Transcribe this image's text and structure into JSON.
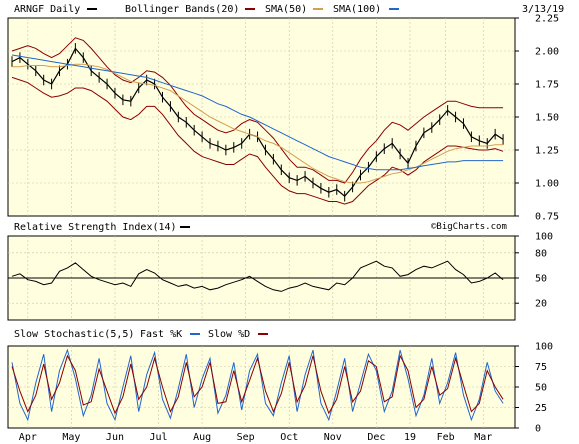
{
  "chart_data": [
    {
      "type": "line",
      "name": "price-panel",
      "title": "ARNGF Daily",
      "date": "3/13/19",
      "legend": [
        {
          "label": "ARNGF Daily",
          "color": "#000000"
        },
        {
          "label": "Bollinger Bands(20)",
          "color": "#8b0000"
        },
        {
          "label": "SMA(50)",
          "color": "#d2a050"
        },
        {
          "label": "SMA(100)",
          "color": "#2266cc"
        }
      ],
      "ylim": [
        0.75,
        2.25
      ],
      "yticks": [
        "0.75",
        "1.00",
        "1.25",
        "1.50",
        "1.75",
        "2.00",
        "2.25"
      ],
      "watermark": "©BigCharts.com",
      "x": [
        0,
        4,
        8,
        12,
        16,
        20,
        24,
        28,
        32,
        36,
        40,
        44,
        48,
        52,
        56,
        60,
        64,
        68,
        72,
        76,
        80,
        84,
        88,
        92,
        96,
        100,
        104,
        108,
        112,
        116,
        120,
        124,
        128,
        132,
        136,
        140,
        144,
        148,
        152,
        156,
        160,
        164,
        168,
        172,
        176,
        180,
        184,
        188,
        192,
        196,
        200,
        204,
        208,
        212,
        216,
        220,
        224,
        228,
        232,
        236,
        240,
        244,
        248
      ],
      "series": [
        {
          "name": "ARNGF Daily",
          "color": "#000000",
          "values": [
            1.92,
            1.95,
            1.9,
            1.85,
            1.78,
            1.75,
            1.85,
            1.9,
            2.02,
            1.95,
            1.85,
            1.8,
            1.75,
            1.68,
            1.63,
            1.62,
            1.72,
            1.78,
            1.75,
            1.65,
            1.58,
            1.5,
            1.46,
            1.4,
            1.35,
            1.3,
            1.28,
            1.25,
            1.27,
            1.3,
            1.37,
            1.35,
            1.25,
            1.18,
            1.1,
            1.04,
            1.02,
            1.05,
            1.0,
            0.96,
            0.93,
            0.95,
            0.9,
            0.97,
            1.06,
            1.12,
            1.2,
            1.26,
            1.3,
            1.22,
            1.15,
            1.28,
            1.38,
            1.42,
            1.48,
            1.55,
            1.5,
            1.45,
            1.35,
            1.32,
            1.3,
            1.37,
            1.33
          ]
        },
        {
          "name": "Bollinger Bands(20)",
          "color": "#8b0000",
          "values": [
            2.0,
            2.02,
            2.04,
            2.02,
            1.98,
            1.95,
            1.98,
            2.04,
            2.1,
            2.08,
            2.02,
            1.95,
            1.88,
            1.82,
            1.78,
            1.76,
            1.8,
            1.85,
            1.84,
            1.8,
            1.74,
            1.66,
            1.58,
            1.52,
            1.48,
            1.44,
            1.4,
            1.38,
            1.4,
            1.45,
            1.48,
            1.46,
            1.4,
            1.34,
            1.26,
            1.18,
            1.12,
            1.12,
            1.1,
            1.06,
            1.02,
            1.02,
            1.0,
            1.08,
            1.18,
            1.26,
            1.32,
            1.4,
            1.46,
            1.44,
            1.4,
            1.45,
            1.5,
            1.54,
            1.58,
            1.62,
            1.62,
            1.6,
            1.58,
            1.57,
            1.57,
            1.57,
            1.57
          ]
        },
        {
          "name": "Bollinger Bands(20) lower",
          "color": "#8b0000",
          "values": [
            1.8,
            1.78,
            1.76,
            1.72,
            1.68,
            1.65,
            1.66,
            1.68,
            1.72,
            1.72,
            1.7,
            1.66,
            1.62,
            1.56,
            1.5,
            1.48,
            1.52,
            1.58,
            1.58,
            1.52,
            1.44,
            1.36,
            1.3,
            1.24,
            1.2,
            1.18,
            1.16,
            1.14,
            1.14,
            1.18,
            1.22,
            1.2,
            1.12,
            1.05,
            0.98,
            0.94,
            0.92,
            0.92,
            0.9,
            0.88,
            0.86,
            0.86,
            0.84,
            0.86,
            0.92,
            0.98,
            1.02,
            1.06,
            1.12,
            1.1,
            1.06,
            1.1,
            1.16,
            1.2,
            1.24,
            1.28,
            1.28,
            1.27,
            1.26,
            1.25,
            1.25,
            1.26,
            1.24
          ]
        },
        {
          "name": "SMA(50)",
          "color": "#d2a050",
          "values": [
            1.88,
            1.88,
            1.89,
            1.89,
            1.89,
            1.88,
            1.88,
            1.89,
            1.9,
            1.9,
            1.89,
            1.88,
            1.86,
            1.83,
            1.8,
            1.77,
            1.76,
            1.75,
            1.74,
            1.72,
            1.7,
            1.66,
            1.62,
            1.58,
            1.54,
            1.5,
            1.47,
            1.44,
            1.41,
            1.39,
            1.37,
            1.35,
            1.32,
            1.3,
            1.27,
            1.23,
            1.19,
            1.15,
            1.11,
            1.08,
            1.05,
            1.03,
            1.01,
            1.0,
            1.0,
            1.01,
            1.03,
            1.05,
            1.07,
            1.08,
            1.1,
            1.12,
            1.15,
            1.18,
            1.21,
            1.24,
            1.26,
            1.27,
            1.28,
            1.28,
            1.28,
            1.29,
            1.29
          ]
        },
        {
          "name": "SMA(100)",
          "color": "#2266cc",
          "values": [
            1.97,
            1.96,
            1.95,
            1.94,
            1.93,
            1.92,
            1.91,
            1.9,
            1.89,
            1.88,
            1.87,
            1.86,
            1.85,
            1.84,
            1.83,
            1.82,
            1.81,
            1.8,
            1.78,
            1.76,
            1.74,
            1.72,
            1.7,
            1.68,
            1.66,
            1.63,
            1.6,
            1.58,
            1.55,
            1.52,
            1.5,
            1.47,
            1.44,
            1.41,
            1.38,
            1.35,
            1.32,
            1.29,
            1.26,
            1.23,
            1.2,
            1.18,
            1.16,
            1.14,
            1.12,
            1.11,
            1.1,
            1.1,
            1.1,
            1.1,
            1.11,
            1.12,
            1.13,
            1.14,
            1.15,
            1.16,
            1.16,
            1.17,
            1.17,
            1.17,
            1.17,
            1.17,
            1.17
          ]
        }
      ]
    },
    {
      "type": "line",
      "name": "rsi-panel",
      "title": "Relative Strength Index(14)",
      "legend": [
        {
          "label": "Relative Strength Index(14)",
          "color": "#000000"
        }
      ],
      "ylim": [
        0,
        100
      ],
      "yticks": [
        "20",
        "50",
        "80",
        "100"
      ],
      "reference_line": 50,
      "x": [
        0,
        4,
        8,
        12,
        16,
        20,
        24,
        28,
        32,
        36,
        40,
        44,
        48,
        52,
        56,
        60,
        64,
        68,
        72,
        76,
        80,
        84,
        88,
        92,
        96,
        100,
        104,
        108,
        112,
        116,
        120,
        124,
        128,
        132,
        136,
        140,
        144,
        148,
        152,
        156,
        160,
        164,
        168,
        172,
        176,
        180,
        184,
        188,
        192,
        196,
        200,
        204,
        208,
        212,
        216,
        220,
        224,
        228,
        232,
        236,
        240,
        244,
        248
      ],
      "series": [
        {
          "name": "Relative Strength Index(14)",
          "color": "#000000",
          "values": [
            52,
            55,
            48,
            46,
            42,
            44,
            58,
            62,
            68,
            60,
            52,
            48,
            45,
            42,
            44,
            40,
            55,
            60,
            56,
            48,
            44,
            40,
            42,
            38,
            40,
            36,
            38,
            42,
            45,
            48,
            52,
            46,
            40,
            36,
            34,
            38,
            40,
            44,
            40,
            38,
            36,
            44,
            42,
            50,
            62,
            66,
            70,
            64,
            62,
            52,
            54,
            60,
            64,
            62,
            66,
            70,
            60,
            54,
            44,
            46,
            50,
            56,
            48
          ]
        }
      ]
    },
    {
      "type": "line",
      "name": "stochastic-panel",
      "title": "Slow Stochastic(5,5)",
      "legend": [
        {
          "label": "Slow Stochastic(5,5)",
          "color": "#000000"
        },
        {
          "label": "Fast %K",
          "color": "#2266cc"
        },
        {
          "label": "Slow %D",
          "color": "#8b0000"
        }
      ],
      "ylim": [
        0,
        100
      ],
      "yticks": [
        "0",
        "25",
        "50",
        "75",
        "100"
      ],
      "x_labels": [
        "Apr",
        "May",
        "Jun",
        "Jul",
        "Aug",
        "Sep",
        "Oct",
        "Nov",
        "Dec",
        "19",
        "Feb",
        "Mar"
      ],
      "x_label_positions": [
        8,
        30,
        52,
        74,
        96,
        118,
        140,
        162,
        184,
        201,
        219,
        238
      ],
      "x": [
        0,
        4,
        8,
        12,
        16,
        20,
        24,
        28,
        32,
        36,
        40,
        44,
        48,
        52,
        56,
        60,
        64,
        68,
        72,
        76,
        80,
        84,
        88,
        92,
        96,
        100,
        104,
        108,
        112,
        116,
        120,
        124,
        128,
        132,
        136,
        140,
        144,
        148,
        152,
        156,
        160,
        164,
        168,
        172,
        176,
        180,
        184,
        188,
        192,
        196,
        200,
        204,
        208,
        212,
        216,
        220,
        224,
        228,
        232,
        236,
        240,
        244,
        248
      ],
      "series": [
        {
          "name": "Fast %K",
          "color": "#2266cc",
          "values": [
            80,
            30,
            10,
            55,
            90,
            20,
            70,
            95,
            60,
            15,
            40,
            85,
            30,
            10,
            50,
            88,
            20,
            65,
            92,
            35,
            12,
            48,
            90,
            25,
            60,
            85,
            18,
            40,
            80,
            22,
            70,
            90,
            30,
            15,
            55,
            88,
            20,
            65,
            95,
            30,
            10,
            45,
            85,
            20,
            55,
            90,
            70,
            20,
            45,
            95,
            60,
            15,
            40,
            85,
            30,
            55,
            92,
            40,
            10,
            35,
            80,
            45,
            30
          ]
        },
        {
          "name": "Slow %D",
          "color": "#8b0000",
          "values": [
            75,
            45,
            20,
            40,
            78,
            35,
            55,
            88,
            70,
            28,
            32,
            72,
            45,
            18,
            38,
            78,
            35,
            50,
            85,
            50,
            20,
            38,
            80,
            38,
            50,
            80,
            30,
            32,
            70,
            32,
            58,
            85,
            45,
            20,
            42,
            80,
            32,
            52,
            88,
            45,
            18,
            35,
            75,
            32,
            45,
            82,
            75,
            32,
            38,
            88,
            70,
            25,
            35,
            75,
            40,
            48,
            85,
            52,
            20,
            30,
            70,
            50,
            35
          ]
        }
      ]
    }
  ]
}
